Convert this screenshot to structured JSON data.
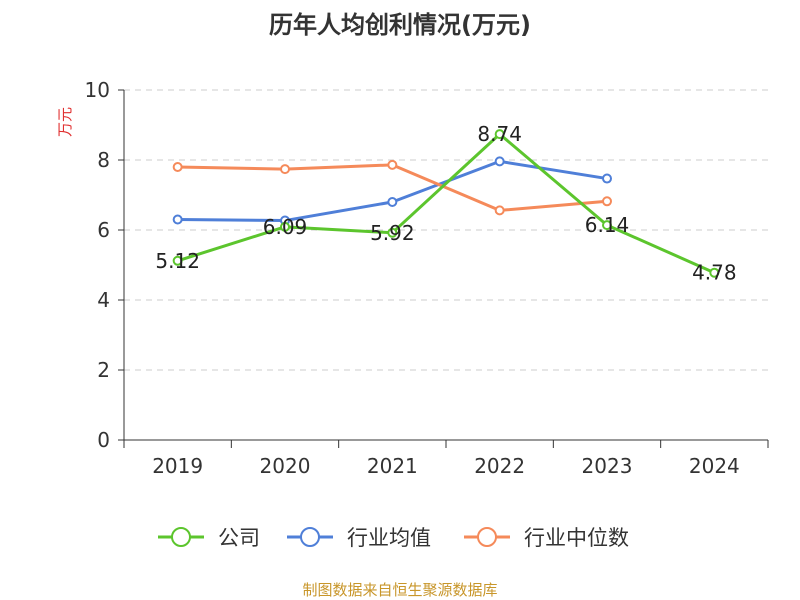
{
  "chart_data": {
    "type": "line",
    "title": "历年人均创利情况(万元)",
    "ylabel": "万元",
    "xlabel": "",
    "ylim": [
      0,
      10
    ],
    "yticks": [
      0,
      2,
      4,
      6,
      8,
      10
    ],
    "categories": [
      "2019",
      "2020",
      "2021",
      "2022",
      "2023",
      "2024"
    ],
    "grid": true,
    "legend_position": "bottom",
    "series": [
      {
        "name": "公司",
        "color": "#5cc52d",
        "values": [
          5.12,
          6.09,
          5.92,
          8.74,
          6.14,
          4.78
        ],
        "labels": [
          "5.12",
          "6.09",
          "5.92",
          "8.74",
          "6.14",
          "4.78"
        ]
      },
      {
        "name": "行业均值",
        "color": "#4f7fd8",
        "values": [
          6.3,
          6.27,
          6.8,
          7.96,
          7.47,
          null
        ],
        "labels": []
      },
      {
        "name": "行业中位数",
        "color": "#f58a5a",
        "values": [
          7.8,
          7.74,
          7.86,
          6.56,
          6.82,
          null
        ],
        "labels": []
      }
    ],
    "source": "制图数据来自恒生聚源数据库"
  }
}
